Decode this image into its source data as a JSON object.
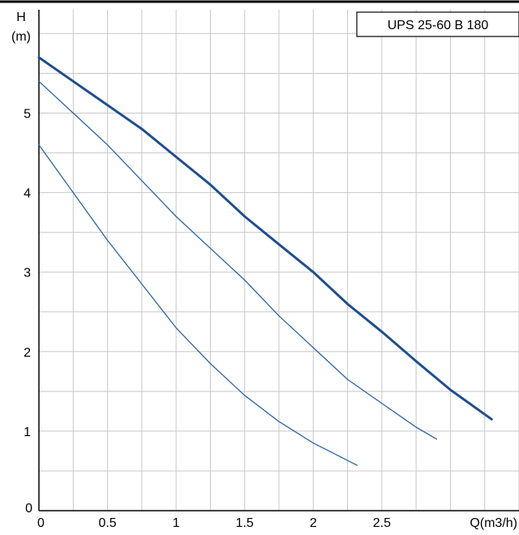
{
  "chart_data": {
    "type": "line",
    "title": "",
    "legend": {
      "label": "UPS 25-60 B 180",
      "placement": "top-right"
    },
    "xlabel": "Q(m3/h)",
    "ylabel_line1": "H",
    "ylabel_line2": "(m)",
    "xlim": [
      0,
      3.5
    ],
    "ylim": [
      0,
      6.3
    ],
    "xticks": [
      {
        "value": 0,
        "label": "0"
      },
      {
        "value": 0.5,
        "label": "0.5"
      },
      {
        "value": 1,
        "label": "1"
      },
      {
        "value": 1.5,
        "label": "1.5"
      },
      {
        "value": 2,
        "label": "2"
      },
      {
        "value": 2.5,
        "label": "2.5"
      }
    ],
    "yticks": [
      {
        "value": 0,
        "label": "0"
      },
      {
        "value": 1,
        "label": "1"
      },
      {
        "value": 2,
        "label": "2"
      },
      {
        "value": 3,
        "label": "3"
      },
      {
        "value": 4,
        "label": "4"
      },
      {
        "value": 5,
        "label": "5"
      }
    ],
    "grid": true,
    "grid_step_x": 0.25,
    "grid_step_y": 0.5,
    "series": [
      {
        "color": "#1f4e8c",
        "thick": true,
        "x": [
          0,
          0.25,
          0.5,
          0.75,
          1,
          1.25,
          1.5,
          1.75,
          2,
          2.25,
          2.5,
          2.75,
          3,
          3.3
        ],
        "y": [
          5.7,
          5.4,
          5.1,
          4.8,
          4.45,
          4.1,
          3.7,
          3.35,
          3.0,
          2.6,
          2.25,
          1.88,
          1.52,
          1.15
        ]
      },
      {
        "color": "#2a64a8",
        "thick": false,
        "x": [
          0,
          0.25,
          0.5,
          0.75,
          1,
          1.25,
          1.5,
          1.75,
          2,
          2.25,
          2.5,
          2.75,
          2.9
        ],
        "y": [
          5.4,
          5.0,
          4.6,
          4.15,
          3.7,
          3.3,
          2.9,
          2.45,
          2.05,
          1.65,
          1.35,
          1.05,
          0.9
        ]
      },
      {
        "color": "#2a64a8",
        "thick": false,
        "x": [
          0,
          0.25,
          0.5,
          0.75,
          1,
          1.25,
          1.5,
          1.75,
          2,
          2.15,
          2.32
        ],
        "y": [
          4.6,
          4.0,
          3.4,
          2.85,
          2.3,
          1.85,
          1.45,
          1.12,
          0.85,
          0.72,
          0.57
        ]
      }
    ]
  }
}
